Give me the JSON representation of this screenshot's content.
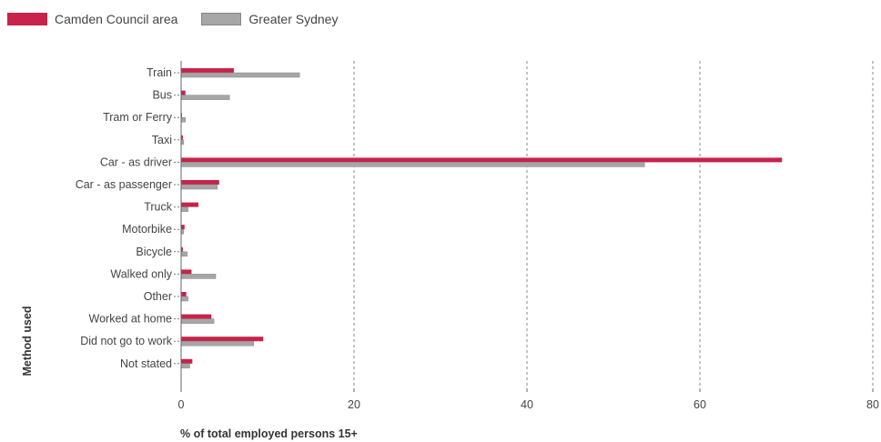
{
  "chart_data": {
    "type": "bar",
    "orientation": "horizontal",
    "categories": [
      "Train",
      "Bus",
      "Tram or Ferry",
      "Taxi",
      "Car - as driver",
      "Car - as passenger",
      "Truck",
      "Motorbike",
      "Bicycle",
      "Walked only",
      "Other",
      "Worked at home",
      "Did not go to work",
      "Not stated"
    ],
    "series": [
      {
        "name": "Camden Council area",
        "color": "#c8234a",
        "values": [
          6.1,
          0.5,
          0.1,
          0.2,
          69.5,
          4.4,
          2.0,
          0.4,
          0.2,
          1.2,
          0.6,
          3.5,
          9.5,
          1.3
        ]
      },
      {
        "name": "Greater Sydney",
        "color": "#a6a6a6",
        "values": [
          13.7,
          5.6,
          0.5,
          0.3,
          53.6,
          4.2,
          0.8,
          0.3,
          0.7,
          4.0,
          0.8,
          3.8,
          8.4,
          1.0
        ]
      }
    ],
    "xlim": [
      0,
      80
    ],
    "xticks": [
      0,
      20,
      40,
      60,
      80
    ],
    "xlabel": "% of total employed persons 15+",
    "ylabel": "Method used",
    "grid": "vertical dashed",
    "legend": "top-left"
  }
}
